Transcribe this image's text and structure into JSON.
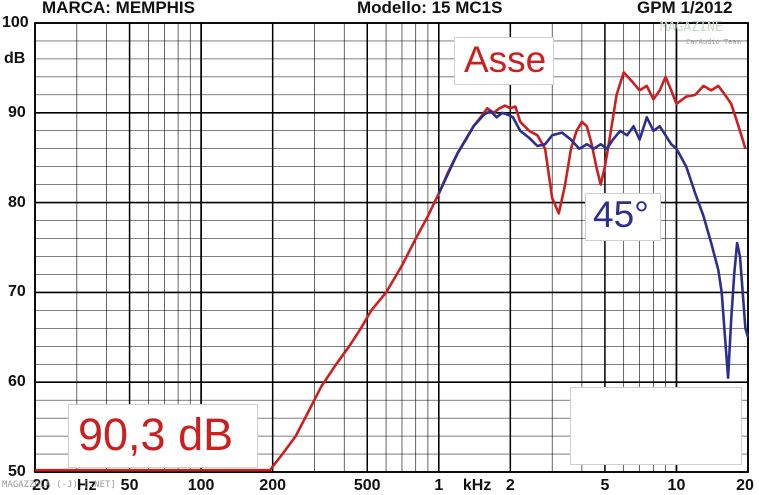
{
  "header": {
    "brand": "MARCA: MEMPHIS",
    "model": "Modello: 15 MC1S",
    "issue": "GPM 1/2012"
  },
  "watermark": {
    "top_right_line1": "MAGAZINE",
    "top_right_line2": "CarAudio Team",
    "bottom_left": "MAGAZZOLA (-J) [.NET]"
  },
  "labels": {
    "axis_label": "Asse",
    "offaxis_label": "45°",
    "sensitivity": "90,3 dB"
  },
  "colors": {
    "axis_series": "#cc1f1f",
    "offaxis_series": "#2c2f8c",
    "grid": "#000000"
  },
  "chart_data": {
    "type": "line",
    "title": "",
    "x_scale": "log",
    "xlim": [
      20,
      20000
    ],
    "ylim": [
      50,
      100
    ],
    "y_tick_labels": [
      "50",
      "60",
      "70",
      "80",
      "90",
      "dB",
      "100"
    ],
    "x_tick_labels": [
      "20",
      "Hz",
      "50",
      "100",
      "200",
      "500",
      "1",
      "kHz",
      "2",
      "5",
      "10",
      "20"
    ],
    "grid": true,
    "series": [
      {
        "name": "Asse",
        "points": [
          [
            20,
            50.2
          ],
          [
            50,
            50.2
          ],
          [
            100,
            50.2
          ],
          [
            195,
            50.2
          ],
          [
            200,
            50.6
          ],
          [
            220,
            52.0
          ],
          [
            250,
            54.0
          ],
          [
            280,
            56.5
          ],
          [
            320,
            59.5
          ],
          [
            370,
            62.0
          ],
          [
            420,
            64.0
          ],
          [
            470,
            66.0
          ],
          [
            520,
            68.0
          ],
          [
            600,
            70.0
          ],
          [
            700,
            73.0
          ],
          [
            800,
            76.0
          ],
          [
            900,
            78.5
          ],
          [
            1000,
            81.0
          ],
          [
            1100,
            83.5
          ],
          [
            1200,
            85.5
          ],
          [
            1300,
            87.0
          ],
          [
            1400,
            88.5
          ],
          [
            1500,
            89.5
          ],
          [
            1600,
            90.5
          ],
          [
            1700,
            90.0
          ],
          [
            1800,
            90.5
          ],
          [
            1900,
            90.8
          ],
          [
            2000,
            90.5
          ],
          [
            2100,
            90.7
          ],
          [
            2200,
            89.0
          ],
          [
            2400,
            88.0
          ],
          [
            2600,
            87.5
          ],
          [
            2800,
            86.0
          ],
          [
            3000,
            80.5
          ],
          [
            3200,
            78.8
          ],
          [
            3400,
            82.0
          ],
          [
            3600,
            86.0
          ],
          [
            3800,
            88.0
          ],
          [
            4000,
            89.0
          ],
          [
            4200,
            88.5
          ],
          [
            4400,
            86.5
          ],
          [
            4600,
            84.0
          ],
          [
            4800,
            82.0
          ],
          [
            5000,
            84.0
          ],
          [
            5300,
            88.0
          ],
          [
            5600,
            92.0
          ],
          [
            6000,
            94.5
          ],
          [
            6500,
            93.5
          ],
          [
            7000,
            92.5
          ],
          [
            7500,
            93.0
          ],
          [
            8000,
            91.5
          ],
          [
            8500,
            92.5
          ],
          [
            9000,
            94.0
          ],
          [
            9500,
            92.5
          ],
          [
            10000,
            91.0
          ],
          [
            11000,
            91.8
          ],
          [
            12000,
            92.0
          ],
          [
            13000,
            93.0
          ],
          [
            14000,
            92.5
          ],
          [
            15000,
            93.0
          ],
          [
            16000,
            92.0
          ],
          [
            17000,
            91.0
          ],
          [
            18000,
            89.0
          ],
          [
            19000,
            87.0
          ],
          [
            19500,
            86.0
          ]
        ]
      },
      {
        "name": "45°",
        "points": [
          [
            1000,
            81.0
          ],
          [
            1200,
            85.5
          ],
          [
            1400,
            88.5
          ],
          [
            1550,
            89.8
          ],
          [
            1650,
            90.2
          ],
          [
            1750,
            89.5
          ],
          [
            1850,
            90.0
          ],
          [
            1950,
            89.8
          ],
          [
            2050,
            89.5
          ],
          [
            2200,
            88.0
          ],
          [
            2400,
            87.2
          ],
          [
            2600,
            86.3
          ],
          [
            2800,
            86.5
          ],
          [
            3000,
            87.5
          ],
          [
            3300,
            87.8
          ],
          [
            3600,
            87.0
          ],
          [
            3900,
            86.0
          ],
          [
            4200,
            86.5
          ],
          [
            4500,
            86.0
          ],
          [
            4800,
            86.5
          ],
          [
            5100,
            86.0
          ],
          [
            5400,
            87.0
          ],
          [
            5800,
            88.0
          ],
          [
            6200,
            87.5
          ],
          [
            6600,
            88.5
          ],
          [
            7000,
            87.0
          ],
          [
            7500,
            89.5
          ],
          [
            8000,
            88.0
          ],
          [
            8500,
            88.5
          ],
          [
            9000,
            87.5
          ],
          [
            9500,
            86.5
          ],
          [
            10000,
            86.0
          ],
          [
            11000,
            84.0
          ],
          [
            12000,
            81.0
          ],
          [
            13000,
            78.5
          ],
          [
            14000,
            75.5
          ],
          [
            15000,
            72.5
          ],
          [
            15500,
            70.0
          ],
          [
            16000,
            65.0
          ],
          [
            16500,
            60.5
          ],
          [
            17000,
            67.0
          ],
          [
            17500,
            72.0
          ],
          [
            18000,
            75.5
          ],
          [
            18500,
            74.0
          ],
          [
            19000,
            70.0
          ],
          [
            19500,
            66.0
          ],
          [
            20000,
            65.0
          ]
        ]
      }
    ]
  }
}
